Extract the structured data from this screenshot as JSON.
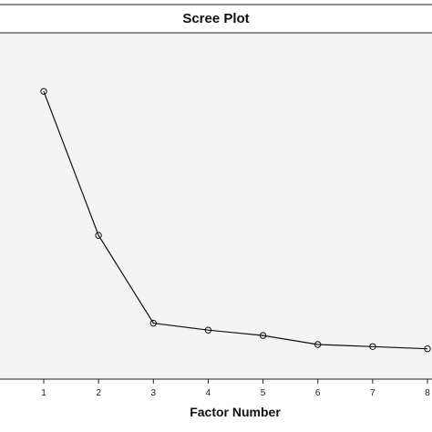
{
  "chart_data": {
    "type": "line",
    "title": "Scree Plot",
    "xlabel": "Factor Number",
    "ylabel": "",
    "x": [
      1,
      2,
      3,
      4,
      5,
      6,
      7,
      8
    ],
    "categories": [
      "1",
      "2",
      "3",
      "4",
      "5",
      "6",
      "7",
      "8"
    ],
    "series": [
      {
        "values": [
          5.4,
          2.7,
          1.05,
          0.92,
          0.82,
          0.65,
          0.61,
          0.57
        ]
      }
    ],
    "ylim": [
      0,
      6.5
    ],
    "grid": false,
    "marker": "open-circle",
    "colors": {
      "plot_background": "#f4f4f4",
      "title_band": "#ffffff",
      "line": "#111111",
      "marker": "#111111"
    }
  }
}
